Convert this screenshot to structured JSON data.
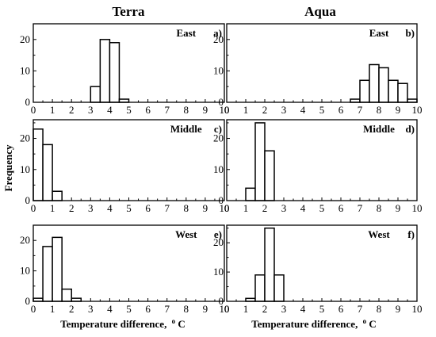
{
  "figure": {
    "col_titles": [
      "Terra",
      "Aqua"
    ],
    "ylabel": "Frequency",
    "xlabel": "Temperature difference,",
    "xlabel_unit_sup": "o",
    "xlabel_unit": "C"
  },
  "chart_data": [
    {
      "type": "bar",
      "panel": "a)",
      "title": "East",
      "column": "Terra",
      "bin_width": 0.5,
      "bin_left_edges": [
        3.0,
        3.5,
        4.0,
        4.5
      ],
      "values": [
        5,
        20,
        19,
        1
      ],
      "xlim": [
        0,
        10
      ],
      "ylim": [
        0,
        25
      ],
      "xticks": [
        0,
        1,
        2,
        3,
        4,
        5,
        6,
        7,
        8,
        9,
        10
      ],
      "yticks": [
        0,
        10,
        20
      ]
    },
    {
      "type": "bar",
      "panel": "b)",
      "title": "East",
      "column": "Aqua",
      "bin_width": 0.5,
      "bin_left_edges": [
        6.5,
        7.0,
        7.5,
        8.0,
        8.5,
        9.0,
        9.5
      ],
      "values": [
        1,
        7,
        12,
        11,
        7,
        6,
        1
      ],
      "xlim": [
        0,
        10
      ],
      "ylim": [
        0,
        25
      ],
      "xticks": [
        0,
        1,
        2,
        3,
        4,
        5,
        6,
        7,
        8,
        9,
        10
      ],
      "yticks": [
        0,
        10,
        20
      ]
    },
    {
      "type": "bar",
      "panel": "c)",
      "title": "Middle",
      "column": "Terra",
      "bin_width": 0.5,
      "bin_left_edges": [
        0.0,
        0.5,
        1.0
      ],
      "values": [
        23,
        18,
        3
      ],
      "xlim": [
        0,
        10
      ],
      "ylim": [
        0,
        26
      ],
      "xticks": [
        0,
        1,
        2,
        3,
        4,
        5,
        6,
        7,
        8,
        9,
        10
      ],
      "yticks": [
        0,
        10,
        20
      ]
    },
    {
      "type": "bar",
      "panel": "d)",
      "title": "Middle",
      "column": "Aqua",
      "bin_width": 0.5,
      "bin_left_edges": [
        1.0,
        1.5,
        2.0
      ],
      "values": [
        4,
        25,
        16
      ],
      "xlim": [
        0,
        10
      ],
      "ylim": [
        0,
        26
      ],
      "xticks": [
        0,
        1,
        2,
        3,
        4,
        5,
        6,
        7,
        8,
        9,
        10
      ],
      "yticks": [
        0,
        10,
        20
      ]
    },
    {
      "type": "bar",
      "panel": "e)",
      "title": "West",
      "column": "Terra",
      "bin_width": 0.5,
      "bin_left_edges": [
        0.0,
        0.5,
        1.0,
        1.5,
        2.0
      ],
      "values": [
        1,
        18,
        21,
        4,
        1
      ],
      "xlim": [
        0,
        10
      ],
      "ylim": [
        0,
        25
      ],
      "xticks": [
        0,
        1,
        2,
        3,
        4,
        5,
        6,
        7,
        8,
        9,
        10
      ],
      "yticks": [
        0,
        10,
        20
      ]
    },
    {
      "type": "bar",
      "panel": "f)",
      "title": "West",
      "column": "Aqua",
      "bin_width": 0.5,
      "bin_left_edges": [
        1.0,
        1.5,
        2.0,
        2.5
      ],
      "values": [
        1,
        9,
        25,
        9
      ],
      "xlim": [
        0,
        10
      ],
      "ylim": [
        0,
        26
      ],
      "xticks": [
        0,
        1,
        2,
        3,
        4,
        5,
        6,
        7,
        8,
        9,
        10
      ],
      "yticks": [
        0,
        10,
        20
      ]
    }
  ]
}
